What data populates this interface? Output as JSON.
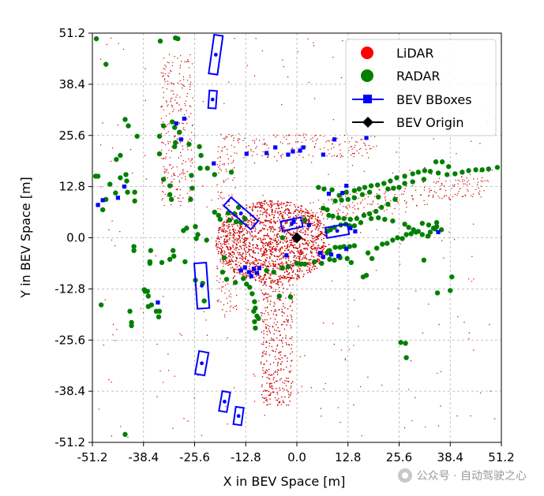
{
  "chart_data": {
    "type": "scatter",
    "title": "",
    "xlabel": "X in BEV Space [m]",
    "ylabel": "Y in BEV Space [m]",
    "xlim": [
      -51.2,
      51.2
    ],
    "ylim": [
      -51.2,
      51.2
    ],
    "grid": true,
    "xticks": [
      "-51.2",
      "-38.4",
      "-25.6",
      "-12.8",
      "0.0",
      "12.8",
      "25.6",
      "38.4",
      "51.2"
    ],
    "yticks": [
      "51.2",
      "38.4",
      "25.6",
      "12.8",
      "0.0",
      "-12.8",
      "-25.6",
      "-38.4",
      "-51.2"
    ],
    "legend": {
      "position": "top-right",
      "entries": [
        {
          "label": "LiDAR",
          "color": "#ff0000",
          "marker": "circle"
        },
        {
          "label": "RADAR",
          "color": "#008000",
          "marker": "circle"
        },
        {
          "label": "BEV BBoxes",
          "color": "#0000ff",
          "marker": "square-line"
        },
        {
          "label": "BEV Origin",
          "color": "#000000",
          "marker": "diamond-line"
        }
      ]
    },
    "series": [
      {
        "name": "LiDAR",
        "color": "#cc0000",
        "description": "dense point cloud concentrated near origin and along road corridors"
      },
      {
        "name": "RADAR",
        "color": "#008000",
        "points": [
          [
            -50.2,
            49.8
          ],
          [
            -47.8,
            43.4
          ],
          [
            -34.2,
            49.2
          ],
          [
            -30.4,
            50.0
          ],
          [
            -29.8,
            49.8
          ],
          [
            -43.0,
            29.6
          ],
          [
            -42.2,
            28.0
          ],
          [
            -40.0,
            25.4
          ],
          [
            -44.2,
            20.6
          ],
          [
            -45.2,
            19.6
          ],
          [
            -50.4,
            15.4
          ],
          [
            -49.8,
            15.4
          ],
          [
            -46.8,
            13.4
          ],
          [
            -44.2,
            15.0
          ],
          [
            -42.8,
            15.8
          ],
          [
            -42.6,
            14.2
          ],
          [
            -42.4,
            11.4
          ],
          [
            -47.8,
            9.6
          ],
          [
            -48.6,
            7.0
          ],
          [
            -45.4,
            11.2
          ],
          [
            -40.6,
            11.4
          ],
          [
            -40.6,
            9.2
          ],
          [
            -34.4,
            21.0
          ],
          [
            -33.4,
            14.6
          ],
          [
            -31.8,
            13.0
          ],
          [
            -26.6,
            9.6
          ],
          [
            -26.2,
            12.4
          ],
          [
            -31.8,
            10.8
          ],
          [
            -31.4,
            9.6
          ],
          [
            -26.4,
            15.6
          ],
          [
            -34.4,
            25.4
          ],
          [
            -33.4,
            28.0
          ],
          [
            -31.2,
            29.0
          ],
          [
            -30.6,
            27.6
          ],
          [
            -30.6,
            22.8
          ],
          [
            -30.4,
            23.8
          ],
          [
            -29.4,
            26.4
          ],
          [
            -27.0,
            23.4
          ],
          [
            -24.4,
            22.8
          ],
          [
            -24.0,
            20.6
          ],
          [
            -24.2,
            17.4
          ],
          [
            -22.4,
            17.4
          ],
          [
            -20.6,
            15.8
          ],
          [
            -16.4,
            16.4
          ],
          [
            -28.4,
            1.8
          ],
          [
            -27.6,
            2.4
          ],
          [
            -25.4,
            2.8
          ],
          [
            -24.8,
            0.8
          ],
          [
            -25.2,
            -0.2
          ],
          [
            -22.6,
            -0.6
          ],
          [
            -30.8,
            -4.6
          ],
          [
            -31.0,
            -3.2
          ],
          [
            -31.8,
            -5.4
          ],
          [
            -33.8,
            -6.2
          ],
          [
            -40.8,
            -2.2
          ],
          [
            -40.8,
            -3.2
          ],
          [
            -36.8,
            -6.0
          ],
          [
            -36.8,
            -6.4
          ],
          [
            -36.6,
            -3.2
          ],
          [
            -28.0,
            -6.0
          ],
          [
            -25.4,
            -10.6
          ],
          [
            -23.6,
            -11.4
          ],
          [
            -23.2,
            -15.8
          ],
          [
            -37.4,
            -13.4
          ],
          [
            -37.2,
            -14.6
          ],
          [
            -38.2,
            -13.0
          ],
          [
            -38.0,
            -13.4
          ],
          [
            -36.4,
            -16.8
          ],
          [
            -37.2,
            -17.2
          ],
          [
            -35.2,
            -18.4
          ],
          [
            -34.4,
            -18.4
          ],
          [
            -34.6,
            -19.8
          ],
          [
            -41.8,
            -18.4
          ],
          [
            -41.4,
            -21.2
          ],
          [
            -41.4,
            -22.0
          ],
          [
            -49.0,
            -16.8
          ],
          [
            -43.0,
            -49.2
          ],
          [
            -20.6,
            6.4
          ],
          [
            -19.6,
            5.6
          ],
          [
            -19.2,
            4.6
          ],
          [
            -17.2,
            6.2
          ],
          [
            -16.8,
            4.4
          ],
          [
            -15.6,
            6.0
          ],
          [
            -15.2,
            4.0
          ],
          [
            -14.6,
            7.6
          ],
          [
            -14.0,
            3.8
          ],
          [
            -13.0,
            4.8
          ],
          [
            -18.2,
            -5.0
          ],
          [
            -18.6,
            -8.6
          ],
          [
            -17.6,
            -10.4
          ],
          [
            -15.4,
            -11.2
          ],
          [
            -13.4,
            -10.2
          ],
          [
            -12.6,
            -11.6
          ],
          [
            -11.8,
            -12.4
          ],
          [
            -11.2,
            -14.0
          ],
          [
            -10.6,
            -16.0
          ],
          [
            -10.4,
            -17.6
          ],
          [
            -10.8,
            -18.4
          ],
          [
            -10.0,
            -19.6
          ],
          [
            -9.6,
            -20.2
          ],
          [
            -10.6,
            -21.0
          ],
          [
            -10.4,
            -22.6
          ],
          [
            -7.6,
            -8.2
          ],
          [
            -5.8,
            -8.6
          ],
          [
            -3.6,
            -7.6
          ],
          [
            -2.2,
            -7.2
          ],
          [
            -4.4,
            -14.6
          ],
          [
            -1.6,
            -14.8
          ],
          [
            0.0,
            -6.4
          ],
          [
            1.0,
            -6.6
          ],
          [
            2.0,
            -6.6
          ],
          [
            4.4,
            -6.0
          ],
          [
            6.2,
            -6.4
          ],
          [
            8.2,
            -5.4
          ],
          [
            9.4,
            -5.6
          ],
          [
            10.8,
            -5.0
          ],
          [
            12.6,
            -5.2
          ],
          [
            13.6,
            -6.2
          ],
          [
            16.6,
            -9.8
          ],
          [
            18.8,
            -5.2
          ],
          [
            7.6,
            -3.8
          ],
          [
            8.2,
            -3.2
          ],
          [
            9.6,
            -2.4
          ],
          [
            10.8,
            -2.4
          ],
          [
            11.8,
            -2.2
          ],
          [
            13.2,
            -2.2
          ],
          [
            14.4,
            -2.0
          ],
          [
            17.8,
            -3.8
          ],
          [
            20.0,
            -2.6
          ],
          [
            21.4,
            -1.6
          ],
          [
            22.6,
            -1.4
          ],
          [
            24.0,
            -0.6
          ],
          [
            25.2,
            0.0
          ],
          [
            26.4,
            -0.2
          ],
          [
            27.4,
            0.8
          ],
          [
            28.6,
            1.0
          ],
          [
            29.8,
            1.4
          ],
          [
            31.4,
            0.8
          ],
          [
            32.8,
            0.4
          ],
          [
            33.4,
            1.4
          ],
          [
            34.6,
            2.2
          ],
          [
            35.0,
            2.8
          ],
          [
            36.2,
            2.0
          ],
          [
            35.0,
            3.8
          ],
          [
            33.0,
            3.2
          ],
          [
            31.4,
            3.6
          ],
          [
            30.4,
            1.6
          ],
          [
            29.2,
            2.0
          ],
          [
            28.0,
            2.6
          ],
          [
            27.0,
            3.4
          ],
          [
            24.0,
            4.2
          ],
          [
            22.0,
            4.6
          ],
          [
            20.4,
            5.0
          ],
          [
            18.6,
            4.8
          ],
          [
            16.0,
            3.8
          ],
          [
            14.4,
            3.0
          ],
          [
            13.2,
            3.0
          ],
          [
            12.2,
            3.4
          ],
          [
            11.0,
            3.2
          ],
          [
            9.4,
            2.6
          ],
          [
            8.4,
            2.0
          ],
          [
            7.6,
            1.6
          ],
          [
            10.6,
            10.6
          ],
          [
            12.4,
            11.4
          ],
          [
            14.4,
            11.8
          ],
          [
            15.6,
            12.2
          ],
          [
            17.0,
            12.6
          ],
          [
            18.6,
            13.0
          ],
          [
            20.2,
            13.2
          ],
          [
            21.8,
            13.6
          ],
          [
            23.4,
            14.2
          ],
          [
            25.0,
            15.0
          ],
          [
            27.0,
            15.4
          ],
          [
            29.0,
            16.0
          ],
          [
            30.4,
            16.4
          ],
          [
            32.0,
            16.8
          ],
          [
            33.4,
            16.6
          ],
          [
            35.4,
            16.2
          ],
          [
            37.6,
            15.8
          ],
          [
            39.6,
            16.0
          ],
          [
            41.4,
            16.4
          ],
          [
            43.0,
            16.8
          ],
          [
            44.8,
            17.0
          ],
          [
            46.4,
            17.0
          ],
          [
            48.0,
            17.2
          ],
          [
            50.2,
            17.6
          ],
          [
            38.0,
            17.8
          ],
          [
            36.4,
            19.0
          ],
          [
            34.8,
            19.0
          ],
          [
            31.8,
            14.6
          ],
          [
            29.0,
            14.0
          ],
          [
            27.0,
            13.6
          ],
          [
            25.6,
            12.6
          ],
          [
            24.2,
            12.4
          ],
          [
            22.8,
            12.2
          ],
          [
            18.2,
            11.4
          ],
          [
            16.4,
            10.8
          ],
          [
            14.4,
            10.0
          ],
          [
            12.8,
            9.6
          ],
          [
            11.2,
            9.4
          ],
          [
            9.6,
            9.2
          ],
          [
            8.8,
            12.0
          ],
          [
            6.8,
            12.2
          ],
          [
            5.4,
            12.6
          ],
          [
            6.6,
            7.4
          ],
          [
            7.6,
            7.0
          ],
          [
            8.0,
            5.6
          ],
          [
            9.0,
            5.4
          ],
          [
            10.4,
            5.0
          ],
          [
            11.8,
            4.8
          ],
          [
            13.4,
            4.6
          ],
          [
            15.0,
            4.8
          ],
          [
            16.8,
            5.6
          ],
          [
            18.2,
            6.0
          ],
          [
            19.8,
            6.6
          ],
          [
            21.2,
            7.6
          ],
          [
            22.8,
            8.4
          ],
          [
            24.6,
            9.6
          ],
          [
            20.4,
            10.2
          ],
          [
            -3.6,
            0.0
          ],
          [
            2.0,
            4.4
          ],
          [
            31.8,
            -5.6
          ],
          [
            38.4,
            -13.2
          ],
          [
            35.2,
            -13.8
          ],
          [
            38.8,
            -9.8
          ],
          [
            27.2,
            -26.4
          ],
          [
            26.0,
            -26.2
          ],
          [
            27.4,
            -30.0
          ],
          [
            34.2,
            2.4
          ],
          [
            10.6,
            -4.6
          ],
          [
            17.4,
            -9.4
          ]
        ]
      },
      {
        "name": "BEV BBoxes",
        "color": "#0000ff",
        "boxes": [
          {
            "cx": -20.3,
            "cy": 45.8,
            "w": 2.2,
            "h": 9.8,
            "angle": 8
          },
          {
            "cx": -21.1,
            "cy": 34.6,
            "w": 1.9,
            "h": 4.4,
            "angle": 4
          },
          {
            "cx": -14.0,
            "cy": 6.1,
            "w": 2.8,
            "h": 9.0,
            "angle": -49
          },
          {
            "cx": -23.8,
            "cy": -12.0,
            "w": 3.0,
            "h": 11.4,
            "angle": -4
          },
          {
            "cx": -23.8,
            "cy": -31.4,
            "w": 2.4,
            "h": 5.8,
            "angle": 10
          },
          {
            "cx": -18.1,
            "cy": -41.0,
            "w": 2.0,
            "h": 5.0,
            "angle": 10
          },
          {
            "cx": -14.6,
            "cy": -44.6,
            "w": 2.0,
            "h": 4.4,
            "angle": 8
          },
          {
            "cx": -1.3,
            "cy": 3.4,
            "w": 2.4,
            "h": 5.2,
            "angle": 78
          },
          {
            "cx": 10.1,
            "cy": 1.7,
            "w": 2.6,
            "h": 5.6,
            "angle": 80
          }
        ],
        "markers": [
          [
            -49.8,
            8.2
          ],
          [
            -48.6,
            9.4
          ],
          [
            -44.8,
            10.0
          ],
          [
            -43.2,
            12.8
          ],
          [
            -30.2,
            28.6
          ],
          [
            -29.0,
            24.6
          ],
          [
            -28.2,
            29.8
          ],
          [
            -20.8,
            18.6
          ],
          [
            -12.6,
            21.0
          ],
          [
            -7.6,
            21.2
          ],
          [
            -5.4,
            22.6
          ],
          [
            -2.2,
            20.8
          ],
          [
            -1.0,
            21.6
          ],
          [
            0.8,
            21.8
          ],
          [
            1.6,
            22.6
          ],
          [
            6.6,
            20.8
          ],
          [
            9.4,
            24.6
          ],
          [
            17.4,
            25.0
          ],
          [
            12.4,
            13.0
          ],
          [
            11.4,
            11.2
          ],
          [
            8.0,
            11.0
          ],
          [
            3.0,
            3.2
          ],
          [
            -0.8,
            4.0
          ],
          [
            -2.6,
            -4.4
          ],
          [
            5.8,
            -3.8
          ],
          [
            6.6,
            -4.8
          ],
          [
            8.6,
            -4.2
          ],
          [
            10.4,
            -4.6
          ],
          [
            12.4,
            -2.8
          ],
          [
            13.4,
            2.4
          ],
          [
            14.6,
            1.6
          ],
          [
            35.4,
            1.4
          ],
          [
            -34.8,
            -16.2
          ],
          [
            -9.4,
            -7.6
          ],
          [
            -10.8,
            -7.8
          ],
          [
            -13.0,
            -7.4
          ],
          [
            -12.0,
            -8.6
          ],
          [
            -10.0,
            -8.8
          ],
          [
            -11.4,
            -9.6
          ],
          [
            -14.0,
            -8.2
          ]
        ]
      },
      {
        "name": "BEV Origin",
        "color": "#000000",
        "points": [
          [
            0.0,
            0.0
          ]
        ]
      }
    ]
  },
  "watermark": {
    "text": "公众号 · 自动驾驶之心"
  }
}
